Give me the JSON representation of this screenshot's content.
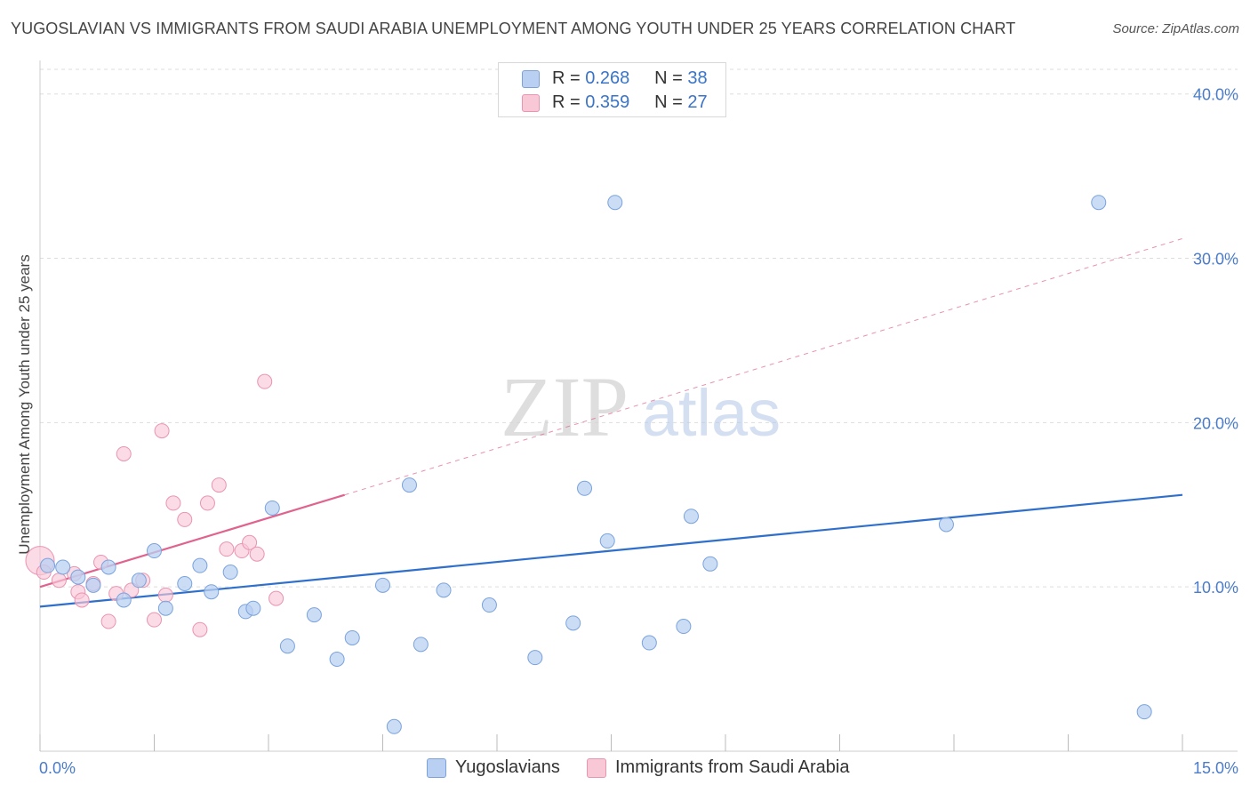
{
  "title": "YUGOSLAVIAN VS IMMIGRANTS FROM SAUDI ARABIA UNEMPLOYMENT AMONG YOUTH UNDER 25 YEARS CORRELATION CHART",
  "source": "Source: ZipAtlas.com",
  "watermark": {
    "zip": "ZIP",
    "atlas": "atlas"
  },
  "legend": {
    "rows": [
      {
        "r_label": "R =",
        "r_value": "0.268",
        "n_label": "N =",
        "n_value": "38"
      },
      {
        "r_label": "R =",
        "r_value": "0.359",
        "n_label": "N =",
        "n_value": "27"
      }
    ]
  },
  "bottom_legend": [
    "Yugoslavians",
    "Immigrants from Saudi Arabia"
  ],
  "colors": {
    "blue_fill": "#b9d0f2",
    "blue_stroke": "#7aa3dc",
    "blue_line": "#2f6fcc",
    "pink_fill": "#f9c8d7",
    "pink_stroke": "#e994b0",
    "pink_line": "#e0628f",
    "grid": "#dddddd",
    "axis_text": "#4a7cc9"
  },
  "chart_data": {
    "type": "scatter",
    "title": "YUGOSLAVIAN VS IMMIGRANTS FROM SAUDI ARABIA UNEMPLOYMENT AMONG YOUTH UNDER 25 YEARS CORRELATION CHART",
    "xlabel": "",
    "ylabel": "Unemployment Among Youth under 25 years",
    "xlim": [
      0,
      15
    ],
    "ylim": [
      0,
      41.5
    ],
    "x_tick_labels": [
      "0.0%",
      "15.0%"
    ],
    "y_ticks": [
      10,
      20,
      30,
      40
    ],
    "y_tick_labels": [
      "10.0%",
      "20.0%",
      "30.0%",
      "40.0%"
    ],
    "grid": true,
    "series": [
      {
        "name": "Yugoslavians",
        "color": "#b9d0f2",
        "points": [
          [
            0.1,
            11.3
          ],
          [
            0.3,
            11.2
          ],
          [
            0.5,
            10.6
          ],
          [
            0.7,
            10.1
          ],
          [
            0.9,
            11.2
          ],
          [
            1.1,
            9.2
          ],
          [
            1.3,
            10.4
          ],
          [
            1.5,
            12.2
          ],
          [
            1.65,
            8.7
          ],
          [
            1.9,
            10.2
          ],
          [
            2.1,
            11.3
          ],
          [
            2.25,
            9.7
          ],
          [
            2.5,
            10.9
          ],
          [
            2.7,
            8.5
          ],
          [
            2.8,
            8.7
          ],
          [
            3.05,
            14.8
          ],
          [
            3.25,
            6.4
          ],
          [
            3.6,
            8.3
          ],
          [
            3.9,
            5.6
          ],
          [
            4.1,
            6.9
          ],
          [
            4.5,
            10.1
          ],
          [
            4.65,
            1.5
          ],
          [
            4.85,
            16.2
          ],
          [
            5.0,
            6.5
          ],
          [
            5.3,
            9.8
          ],
          [
            5.9,
            8.9
          ],
          [
            6.5,
            5.7
          ],
          [
            7.0,
            7.8
          ],
          [
            7.15,
            16.0
          ],
          [
            7.45,
            12.8
          ],
          [
            7.55,
            33.4
          ],
          [
            8.0,
            6.6
          ],
          [
            8.45,
            7.6
          ],
          [
            8.55,
            14.3
          ],
          [
            8.8,
            11.4
          ],
          [
            11.9,
            13.8
          ],
          [
            13.9,
            33.4
          ],
          [
            14.5,
            2.4
          ]
        ],
        "trend": {
          "x": [
            0,
            15
          ],
          "y": [
            8.8,
            15.6
          ],
          "style": "solid"
        }
      },
      {
        "name": "Immigrants from Saudi Arabia",
        "color": "#f9c8d7",
        "points": [
          [
            0.0,
            11.6
          ],
          [
            0.05,
            10.9
          ],
          [
            0.25,
            10.4
          ],
          [
            0.45,
            10.8
          ],
          [
            0.5,
            9.7
          ],
          [
            0.55,
            9.2
          ],
          [
            0.7,
            10.2
          ],
          [
            0.8,
            11.5
          ],
          [
            0.9,
            7.9
          ],
          [
            1.0,
            9.6
          ],
          [
            1.1,
            18.1
          ],
          [
            1.2,
            9.8
          ],
          [
            1.35,
            10.4
          ],
          [
            1.5,
            8.0
          ],
          [
            1.6,
            19.5
          ],
          [
            1.65,
            9.5
          ],
          [
            1.75,
            15.1
          ],
          [
            1.9,
            14.1
          ],
          [
            2.1,
            7.4
          ],
          [
            2.2,
            15.1
          ],
          [
            2.35,
            16.2
          ],
          [
            2.45,
            12.3
          ],
          [
            2.65,
            12.2
          ],
          [
            2.75,
            12.7
          ],
          [
            2.85,
            12.0
          ],
          [
            2.95,
            22.5
          ],
          [
            3.1,
            9.3
          ]
        ],
        "trend": {
          "x": [
            0,
            4.0
          ],
          "y": [
            10.0,
            15.6
          ],
          "style": "solid"
        },
        "trend_extension": {
          "x": [
            4.0,
            15
          ],
          "y": [
            15.6,
            31.2
          ],
          "style": "dashed"
        }
      }
    ]
  }
}
